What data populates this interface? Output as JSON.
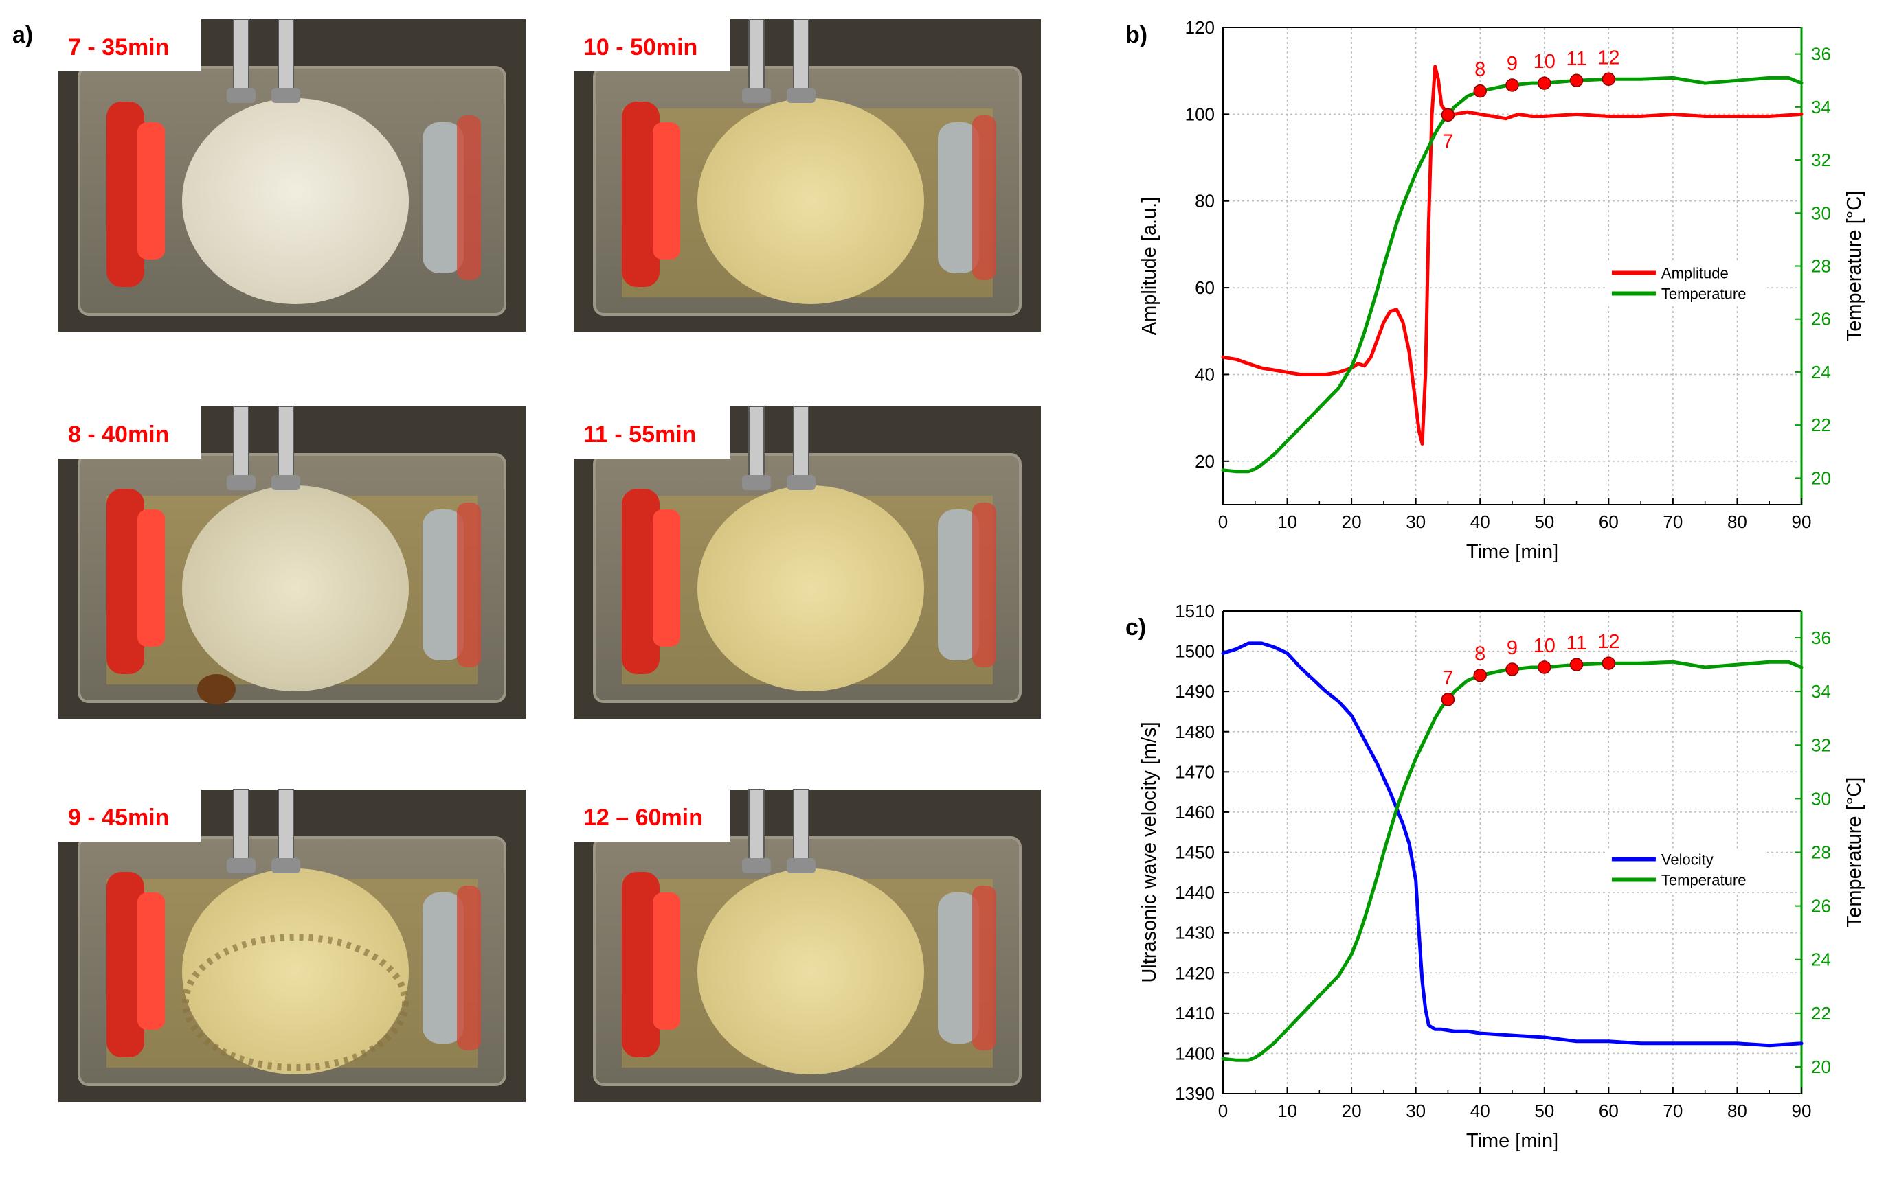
{
  "panels": {
    "a": "a)",
    "b": "b)",
    "c": "c)"
  },
  "photos": [
    {
      "caption": "7 - 35min",
      "state": "foamy"
    },
    {
      "caption": "10 - 50min",
      "state": "gel"
    },
    {
      "caption": "8 - 40min",
      "state": "cloudy"
    },
    {
      "caption": "11 - 55min",
      "state": "gel"
    },
    {
      "caption": "9 - 45min",
      "state": "ring"
    },
    {
      "caption": "12 – 60min",
      "state": "gel"
    }
  ],
  "colors": {
    "amplitude": "#ff0000",
    "temperature": "#009900",
    "velocity": "#0000ff",
    "marker_fill": "#ff0000",
    "caption": "#ff0000"
  },
  "chart_data": [
    {
      "id": "b",
      "type": "line",
      "xlabel": "Time [min]",
      "ylabel": "Amplitude [a.u.]",
      "y2label": "Temperature [°C]",
      "xlim": [
        0,
        90
      ],
      "ylim": [
        10,
        120
      ],
      "y2lim": [
        19,
        37
      ],
      "xticks": [
        0,
        10,
        20,
        30,
        40,
        50,
        60,
        70,
        80,
        90
      ],
      "yticks": [
        20,
        40,
        60,
        80,
        100,
        120
      ],
      "y2ticks": [
        20,
        22,
        24,
        26,
        28,
        30,
        32,
        34,
        36
      ],
      "grid": true,
      "legend_position": "center-right",
      "series": [
        {
          "name": "Amplitude",
          "axis": "left",
          "color": "#ff0000",
          "x": [
            0,
            2,
            4,
            6,
            8,
            10,
            12,
            14,
            16,
            18,
            19,
            20,
            21,
            22,
            23,
            24,
            25,
            26,
            27,
            28,
            29,
            30,
            30.5,
            31,
            31.5,
            32,
            32.5,
            33,
            33.5,
            34,
            35,
            36,
            38,
            40,
            42,
            44,
            46,
            48,
            50,
            55,
            60,
            65,
            70,
            75,
            80,
            85,
            90
          ],
          "values": [
            44,
            43.5,
            42.5,
            41.5,
            41,
            40.5,
            40,
            40,
            40,
            40.5,
            41,
            41.5,
            42.5,
            42,
            44,
            48,
            52,
            54.5,
            55,
            52,
            45,
            33,
            27,
            24,
            40,
            75,
            100,
            111,
            108,
            102,
            100,
            100,
            100.5,
            100,
            99.5,
            99,
            100,
            99.5,
            99.5,
            100,
            99.5,
            99.5,
            100,
            99.5,
            99.5,
            99.5,
            100
          ]
        },
        {
          "name": "Temperature",
          "axis": "right",
          "color": "#009900",
          "x": [
            0,
            2,
            4,
            5,
            6,
            8,
            10,
            12,
            14,
            16,
            18,
            19,
            20,
            21,
            22,
            23,
            24,
            25,
            26,
            27,
            28,
            29,
            30,
            31,
            32,
            33,
            34,
            35,
            36,
            37,
            38,
            40,
            42,
            44,
            46,
            48,
            50,
            55,
            60,
            65,
            70,
            75,
            80,
            85,
            88,
            90
          ],
          "values": [
            20.3,
            20.25,
            20.25,
            20.35,
            20.5,
            20.9,
            21.4,
            21.9,
            22.4,
            22.9,
            23.4,
            23.8,
            24.2,
            24.8,
            25.5,
            26.3,
            27.1,
            28.0,
            28.8,
            29.6,
            30.3,
            30.9,
            31.5,
            32.0,
            32.5,
            33.0,
            33.4,
            33.7,
            34.0,
            34.2,
            34.4,
            34.6,
            34.7,
            34.8,
            34.85,
            34.9,
            34.9,
            35.0,
            35.05,
            35.05,
            35.1,
            34.9,
            35.0,
            35.1,
            35.1,
            34.9
          ]
        }
      ],
      "markers": {
        "x": [
          35,
          40,
          45,
          50,
          55,
          60
        ],
        "labels": [
          "7",
          "8",
          "9",
          "10",
          "11",
          "12"
        ]
      }
    },
    {
      "id": "c",
      "type": "line",
      "xlabel": "Time [min]",
      "ylabel": "Ultrasonic wave velocity [m/s]",
      "y2label": "Temperature [°C]",
      "xlim": [
        0,
        90
      ],
      "ylim": [
        1390,
        1510
      ],
      "y2lim": [
        19,
        37
      ],
      "xticks": [
        0,
        10,
        20,
        30,
        40,
        50,
        60,
        70,
        80,
        90
      ],
      "yticks": [
        1390,
        1400,
        1410,
        1420,
        1430,
        1440,
        1450,
        1460,
        1470,
        1480,
        1490,
        1500,
        1510
      ],
      "y2ticks": [
        20,
        22,
        24,
        26,
        28,
        30,
        32,
        34,
        36
      ],
      "grid": true,
      "legend_position": "center-right",
      "series": [
        {
          "name": "Velocity",
          "axis": "left",
          "color": "#0000ff",
          "x": [
            0,
            2,
            4,
            6,
            8,
            10,
            12,
            14,
            16,
            18,
            20,
            22,
            24,
            26,
            27,
            28,
            29,
            30,
            30.5,
            31,
            31.5,
            32,
            33,
            34,
            36,
            38,
            40,
            45,
            50,
            55,
            60,
            65,
            70,
            75,
            80,
            85,
            90
          ],
          "values": [
            1499.5,
            1500.5,
            1502,
            1502,
            1501,
            1499.5,
            1496,
            1493,
            1490,
            1487.5,
            1484,
            1478,
            1472,
            1465,
            1461,
            1457,
            1452,
            1443,
            1430,
            1418,
            1411,
            1407,
            1406,
            1406,
            1405.5,
            1405.5,
            1405,
            1404.5,
            1404,
            1403,
            1403,
            1402.5,
            1402.5,
            1402.5,
            1402.5,
            1402,
            1402.5
          ]
        },
        {
          "name": "Temperature",
          "axis": "right",
          "color": "#009900",
          "x": [
            0,
            2,
            4,
            5,
            6,
            8,
            10,
            12,
            14,
            16,
            18,
            19,
            20,
            21,
            22,
            23,
            24,
            25,
            26,
            27,
            28,
            29,
            30,
            31,
            32,
            33,
            34,
            35,
            36,
            37,
            38,
            40,
            42,
            44,
            46,
            48,
            50,
            55,
            60,
            65,
            70,
            75,
            80,
            85,
            88,
            90
          ],
          "values": [
            20.3,
            20.25,
            20.25,
            20.35,
            20.5,
            20.9,
            21.4,
            21.9,
            22.4,
            22.9,
            23.4,
            23.8,
            24.2,
            24.8,
            25.5,
            26.3,
            27.1,
            28.0,
            28.8,
            29.6,
            30.3,
            30.9,
            31.5,
            32.0,
            32.5,
            33.0,
            33.4,
            33.7,
            34.0,
            34.2,
            34.4,
            34.6,
            34.7,
            34.8,
            34.85,
            34.9,
            34.9,
            35.0,
            35.05,
            35.05,
            35.1,
            34.9,
            35.0,
            35.1,
            35.1,
            34.9
          ]
        }
      ],
      "markers": {
        "x": [
          35,
          40,
          45,
          50,
          55,
          60
        ],
        "labels": [
          "7",
          "8",
          "9",
          "10",
          "11",
          "12"
        ]
      }
    }
  ]
}
